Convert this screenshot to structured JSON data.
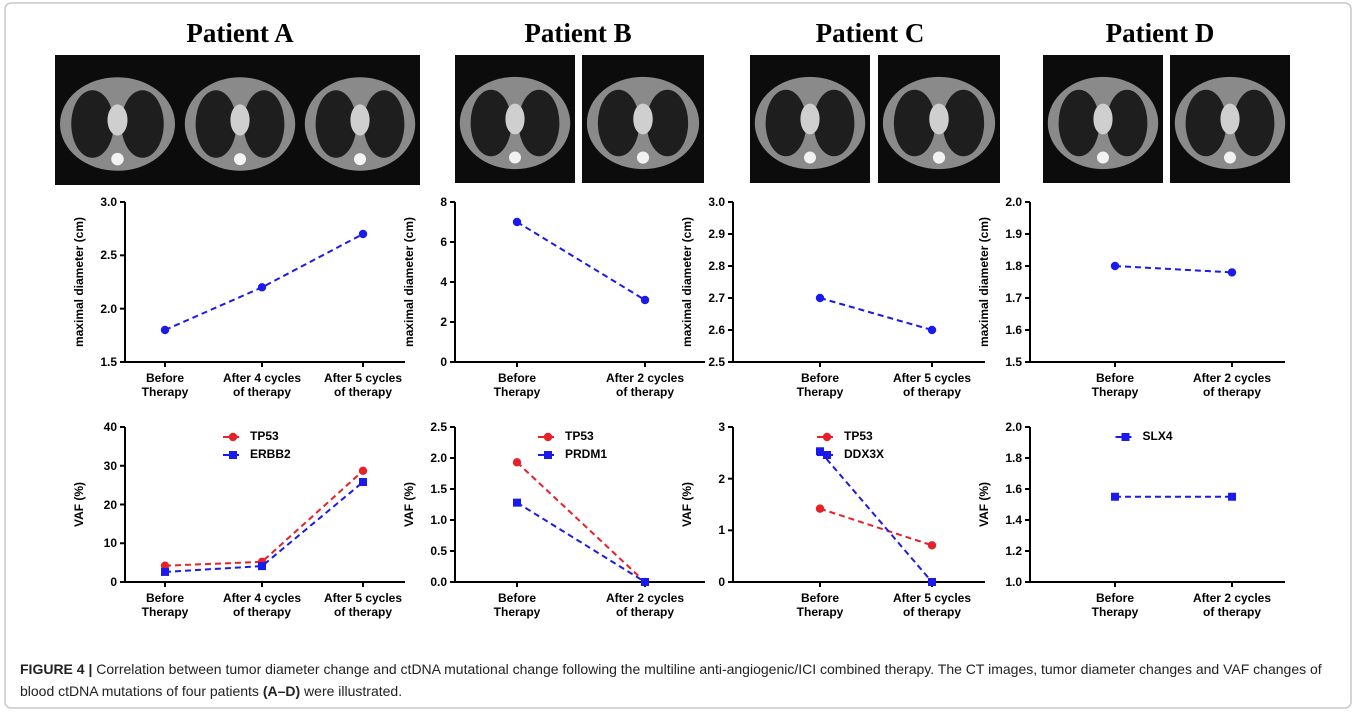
{
  "panels": [
    "Patient A",
    "Patient B",
    "Patient C",
    "Patient D"
  ],
  "chart_data": [
    {
      "type": "line",
      "y_label": "maximal diameter (cm)",
      "categories": [
        "Before\nTherapy",
        "After 4 cycles\nof therapy",
        "After 5 cycles\nof therapy"
      ],
      "values": [
        1.8,
        2.2,
        2.7
      ],
      "color": "#1a1aec",
      "marker": "circle",
      "line_style": "dashed",
      "ylim": [
        1.5,
        3.0
      ],
      "yticks": [
        1.5,
        {
          "value": 2.0,
          "label": "2.0"
        },
        2.5,
        {
          "value": 3.0,
          "label": "3.0"
        }
      ]
    },
    {
      "type": "line",
      "y_label": "maximal diameter (cm)",
      "categories": [
        "Before\nTherapy",
        "After 2 cycles\nof therapy"
      ],
      "values": [
        7.0,
        3.1
      ],
      "color": "#1a1aec",
      "marker": "circle",
      "line_style": "dashed",
      "ylim": [
        0,
        8
      ],
      "yticks": [
        0,
        2,
        4,
        6,
        8
      ]
    },
    {
      "type": "line",
      "y_label": "maximal diameter (cm)",
      "categories": [
        "Before\nTherapy",
        "After 5 cycles\nof therapy"
      ],
      "values": [
        2.7,
        2.6
      ],
      "color": "#1a1aec",
      "marker": "circle",
      "line_style": "dashed",
      "ylim": [
        2.5,
        3.0
      ],
      "yticks": [
        2.5,
        2.6,
        2.7,
        2.8,
        2.9,
        {
          "value": 3.0,
          "label": "3.0"
        }
      ]
    },
    {
      "type": "line",
      "y_label": "maximal diameter (cm)",
      "categories": [
        "Before\nTherapy",
        "After 2 cycles\nof therapy"
      ],
      "values": [
        1.8,
        1.78
      ],
      "color": "#1a1aec",
      "marker": "circle",
      "line_style": "dashed",
      "ylim": [
        1.5,
        2.0
      ],
      "yticks": [
        1.5,
        1.6,
        1.7,
        1.8,
        1.9,
        {
          "value": 2.0,
          "label": "2.0"
        }
      ]
    },
    {
      "type": "line",
      "y_label": "VAF (%)",
      "categories": [
        "Before\nTherapy",
        "After 4 cycles\nof therapy",
        "After 5 cycles\nof therapy"
      ],
      "line_style": "dashed",
      "legend": "top",
      "ylim": [
        0,
        40
      ],
      "yticks": [
        0,
        10,
        20,
        30,
        40
      ],
      "series": [
        {
          "name": "TP53",
          "color": "#e8202a",
          "marker": "circle",
          "values": [
            4.2,
            5.2,
            28.7
          ]
        },
        {
          "name": "ERBB2",
          "color": "#1a1aec",
          "marker": "square",
          "values": [
            2.6,
            4.1,
            25.8
          ]
        }
      ]
    },
    {
      "type": "line",
      "y_label": "VAF (%)",
      "categories": [
        "Before\nTherapy",
        "After 2 cycles\nof therapy"
      ],
      "line_style": "dashed",
      "legend": "top",
      "ylim": [
        0,
        2.5
      ],
      "yticks": [
        {
          "value": 0,
          "label": "0.0"
        },
        0.5,
        {
          "value": 1.0,
          "label": "1.0"
        },
        1.5,
        {
          "value": 2.0,
          "label": "2.0"
        },
        2.5
      ],
      "series": [
        {
          "name": "TP53",
          "color": "#e8202a",
          "marker": "circle",
          "values": [
            1.93,
            0.0
          ]
        },
        {
          "name": "PRDM1",
          "color": "#1a1aec",
          "marker": "square",
          "values": [
            1.28,
            0.0
          ]
        }
      ]
    },
    {
      "type": "line",
      "y_label": "VAF (%)",
      "categories": [
        "Before\nTherapy",
        "After 5 cycles\nof therapy"
      ],
      "line_style": "dashed",
      "legend": "top",
      "ylim": [
        0,
        3
      ],
      "yticks": [
        0,
        1,
        2,
        3
      ],
      "series": [
        {
          "name": "TP53",
          "color": "#e8202a",
          "marker": "circle",
          "values": [
            1.42,
            0.71
          ]
        },
        {
          "name": "DDX3X",
          "color": "#1a1aec",
          "marker": "square",
          "values": [
            2.53,
            0.0
          ]
        }
      ]
    },
    {
      "type": "line",
      "y_label": "VAF (%)",
      "categories": [
        "Before\nTherapy",
        "After 2 cycles\nof therapy"
      ],
      "line_style": "dashed",
      "legend": "top",
      "ylim": [
        1.0,
        2.0
      ],
      "yticks": [
        {
          "value": 1.0,
          "label": "1.0"
        },
        1.2,
        1.4,
        1.6,
        1.8,
        {
          "value": 2.0,
          "label": "2.0"
        }
      ],
      "series": [
        {
          "name": "SLX4",
          "color": "#1a1aec",
          "marker": "square",
          "values": [
            1.55,
            1.55
          ]
        }
      ]
    }
  ],
  "caption": {
    "label": "FIGURE 4 |",
    "text": "Correlation between tumor diameter change and ctDNA mutational change following the multiline anti-angiogenic/ICI combined therapy. The CT images, tumor diameter changes and VAF changes of blood ctDNA mutations of four patients",
    "bold": "(A–D)",
    "end": "were illustrated."
  }
}
